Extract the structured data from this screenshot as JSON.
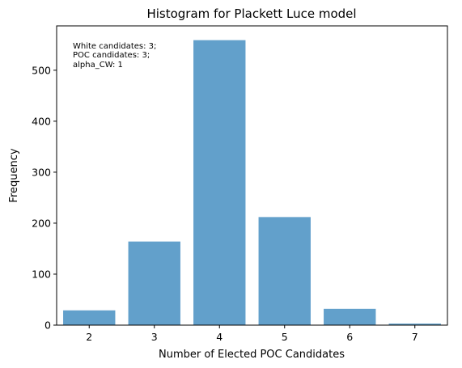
{
  "chart_data": {
    "type": "bar",
    "title": "Histogram for Plackett Luce model",
    "xlabel": "Number of Elected POC Candidates",
    "ylabel": "Frequency",
    "categories": [
      "2",
      "3",
      "4",
      "5",
      "6",
      "7"
    ],
    "values": [
      29,
      164,
      559,
      212,
      32,
      3
    ],
    "ylim": [
      0,
      587
    ],
    "yticks": [
      0,
      100,
      200,
      300,
      400,
      500
    ],
    "bar_color": "#62a0cb",
    "grid": false,
    "annotation": [
      "White candidates: 3;",
      "POC candidates: 3;",
      "alpha_CW: 1"
    ]
  }
}
